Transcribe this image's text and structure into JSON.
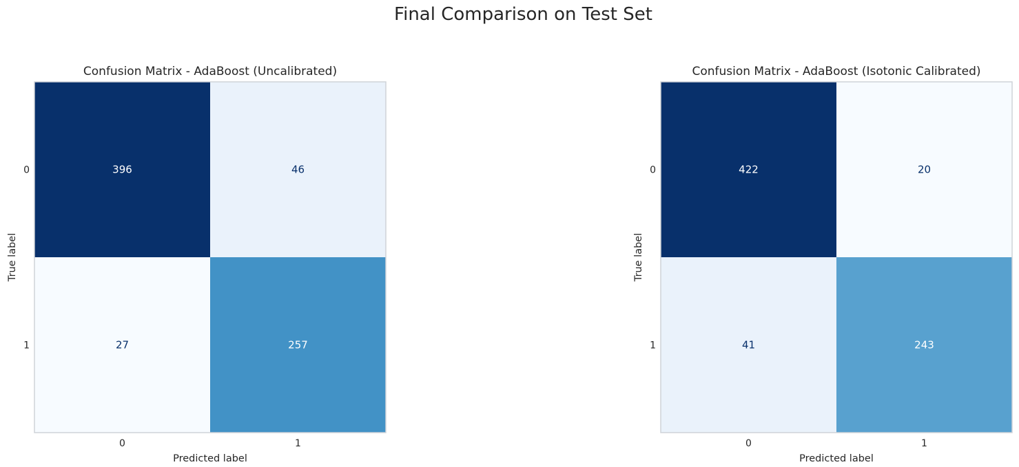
{
  "figure": {
    "title": "Final Comparison on Test Set"
  },
  "chart_data": [
    {
      "type": "heatmap",
      "title": "Confusion Matrix - AdaBoost (Uncalibrated)",
      "xlabel": "Predicted label",
      "ylabel": "True label",
      "x_ticks": [
        "0",
        "1"
      ],
      "y_ticks": [
        "0",
        "1"
      ],
      "values": [
        [
          396,
          46
        ],
        [
          27,
          257
        ]
      ],
      "colormap": "Blues",
      "grid": false,
      "colors": {
        "c00": "#08306b",
        "c01": "#eaf2fb",
        "c10": "#f7fbff",
        "c11": "#4292c6",
        "text_light": "#ffffff",
        "text_dark": "#08306b"
      }
    },
    {
      "type": "heatmap",
      "title": "Confusion Matrix - AdaBoost (Isotonic Calibrated)",
      "xlabel": "Predicted label",
      "ylabel": "True label",
      "x_ticks": [
        "0",
        "1"
      ],
      "y_ticks": [
        "0",
        "1"
      ],
      "values": [
        [
          422,
          20
        ],
        [
          41,
          243
        ]
      ],
      "colormap": "Blues",
      "grid": false,
      "colors": {
        "c00": "#08306b",
        "c01": "#f7fbff",
        "c10": "#eaf2fb",
        "c11": "#58a1cf",
        "text_light": "#ffffff",
        "text_dark": "#08306b"
      }
    }
  ]
}
